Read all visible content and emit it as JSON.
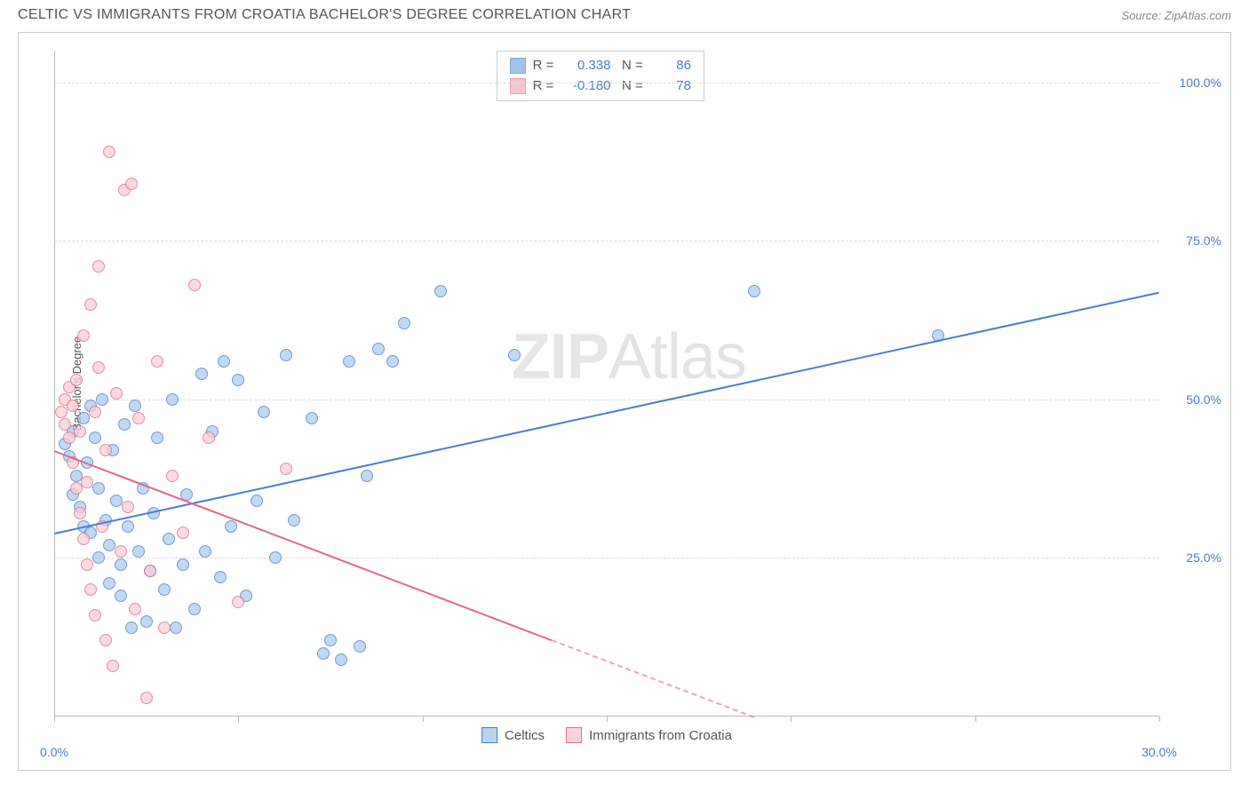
{
  "header": {
    "title": "CELTIC VS IMMIGRANTS FROM CROATIA BACHELOR'S DEGREE CORRELATION CHART",
    "source_prefix": "Source: ",
    "source_name": "ZipAtlas.com"
  },
  "watermark": {
    "zip": "ZIP",
    "atlas": "Atlas"
  },
  "chart": {
    "type": "scatter",
    "ylabel": "Bachelor's Degree",
    "background_color": "#ffffff",
    "grid_color": "#dddddd",
    "axis_color": "#bbbbbb",
    "tick_label_color": "#4a7ec9",
    "tick_fontsize": 14,
    "label_fontsize": 13,
    "xlim": [
      0,
      30
    ],
    "ylim": [
      0,
      105
    ],
    "xtick_labels": [
      {
        "v": 0,
        "label": "0.0%"
      },
      {
        "v": 30,
        "label": "30.0%"
      }
    ],
    "xtick_marks": [
      0,
      5,
      10,
      15,
      20,
      25,
      30
    ],
    "yticks": [
      {
        "v": 25,
        "label": "25.0%"
      },
      {
        "v": 50,
        "label": "50.0%"
      },
      {
        "v": 75,
        "label": "75.0%"
      },
      {
        "v": 100,
        "label": "100.0%"
      }
    ],
    "point_radius": 7,
    "point_stroke_width": 1.5,
    "point_fill_opacity": 0.3,
    "series": [
      {
        "name": "Celtics",
        "color": "#6fa3e0",
        "stroke": "#4a7ec9",
        "r_value": "0.338",
        "n_value": "86",
        "trend": {
          "x1": 0,
          "y1": 29,
          "x2": 30,
          "y2": 67,
          "solid_until_x": 30,
          "width": 2.2
        },
        "points": [
          [
            0.3,
            43
          ],
          [
            0.4,
            41
          ],
          [
            0.5,
            45
          ],
          [
            0.5,
            35
          ],
          [
            0.6,
            38
          ],
          [
            0.7,
            33
          ],
          [
            0.8,
            47
          ],
          [
            0.8,
            30
          ],
          [
            0.9,
            40
          ],
          [
            1.0,
            49
          ],
          [
            1.0,
            29
          ],
          [
            1.1,
            44
          ],
          [
            1.2,
            36
          ],
          [
            1.2,
            25
          ],
          [
            1.3,
            50
          ],
          [
            1.4,
            31
          ],
          [
            1.5,
            27
          ],
          [
            1.5,
            21
          ],
          [
            1.6,
            42
          ],
          [
            1.7,
            34
          ],
          [
            1.8,
            24
          ],
          [
            1.8,
            19
          ],
          [
            1.9,
            46
          ],
          [
            2.0,
            30
          ],
          [
            2.1,
            14
          ],
          [
            2.2,
            49
          ],
          [
            2.3,
            26
          ],
          [
            2.4,
            36
          ],
          [
            2.5,
            15
          ],
          [
            2.6,
            23
          ],
          [
            2.7,
            32
          ],
          [
            2.8,
            44
          ],
          [
            3.0,
            20
          ],
          [
            3.1,
            28
          ],
          [
            3.2,
            50
          ],
          [
            3.3,
            14
          ],
          [
            3.5,
            24
          ],
          [
            3.6,
            35
          ],
          [
            3.8,
            17
          ],
          [
            4.0,
            54
          ],
          [
            4.1,
            26
          ],
          [
            4.3,
            45
          ],
          [
            4.5,
            22
          ],
          [
            4.6,
            56
          ],
          [
            4.8,
            30
          ],
          [
            5.0,
            53
          ],
          [
            5.2,
            19
          ],
          [
            5.5,
            34
          ],
          [
            5.7,
            48
          ],
          [
            6.0,
            25
          ],
          [
            6.3,
            57
          ],
          [
            6.5,
            31
          ],
          [
            7.0,
            47
          ],
          [
            7.3,
            10
          ],
          [
            7.5,
            12
          ],
          [
            7.8,
            9
          ],
          [
            8.0,
            56
          ],
          [
            8.3,
            11
          ],
          [
            8.5,
            38
          ],
          [
            8.8,
            58
          ],
          [
            9.2,
            56
          ],
          [
            9.5,
            62
          ],
          [
            10.5,
            67
          ],
          [
            12.5,
            57
          ],
          [
            19.0,
            67
          ],
          [
            24.0,
            60
          ]
        ]
      },
      {
        "name": "Immigrants from Croatia",
        "color": "#f2a8b8",
        "stroke": "#e06a87",
        "r_value": "-0.180",
        "n_value": "78",
        "trend": {
          "x1": 0,
          "y1": 42,
          "x2": 19,
          "y2": 0,
          "solid_until_x": 13.5,
          "width": 2.2
        },
        "points": [
          [
            0.2,
            48
          ],
          [
            0.3,
            50
          ],
          [
            0.3,
            46
          ],
          [
            0.4,
            52
          ],
          [
            0.4,
            44
          ],
          [
            0.5,
            49
          ],
          [
            0.5,
            40
          ],
          [
            0.6,
            53
          ],
          [
            0.6,
            36
          ],
          [
            0.7,
            45
          ],
          [
            0.7,
            32
          ],
          [
            0.8,
            60
          ],
          [
            0.8,
            28
          ],
          [
            0.9,
            37
          ],
          [
            0.9,
            24
          ],
          [
            1.0,
            65
          ],
          [
            1.0,
            20
          ],
          [
            1.1,
            48
          ],
          [
            1.1,
            16
          ],
          [
            1.2,
            71
          ],
          [
            1.2,
            55
          ],
          [
            1.3,
            30
          ],
          [
            1.4,
            42
          ],
          [
            1.4,
            12
          ],
          [
            1.5,
            89
          ],
          [
            1.6,
            8
          ],
          [
            1.7,
            51
          ],
          [
            1.8,
            26
          ],
          [
            1.9,
            83
          ],
          [
            2.0,
            33
          ],
          [
            2.1,
            84
          ],
          [
            2.2,
            17
          ],
          [
            2.3,
            47
          ],
          [
            2.5,
            3
          ],
          [
            2.6,
            23
          ],
          [
            2.8,
            56
          ],
          [
            3.0,
            14
          ],
          [
            3.2,
            38
          ],
          [
            3.5,
            29
          ],
          [
            3.8,
            68
          ],
          [
            4.2,
            44
          ],
          [
            5.0,
            18
          ],
          [
            6.3,
            39
          ]
        ]
      }
    ],
    "legend_box": {
      "r_label": "R =",
      "n_label": "N ="
    },
    "bottom_legend": [
      {
        "label": "Celtics",
        "fill": "#b9d3f0",
        "stroke": "#4a7ec9"
      },
      {
        "label": "Immigrants from Croatia",
        "fill": "#f9d3dc",
        "stroke": "#e06a87"
      }
    ]
  }
}
